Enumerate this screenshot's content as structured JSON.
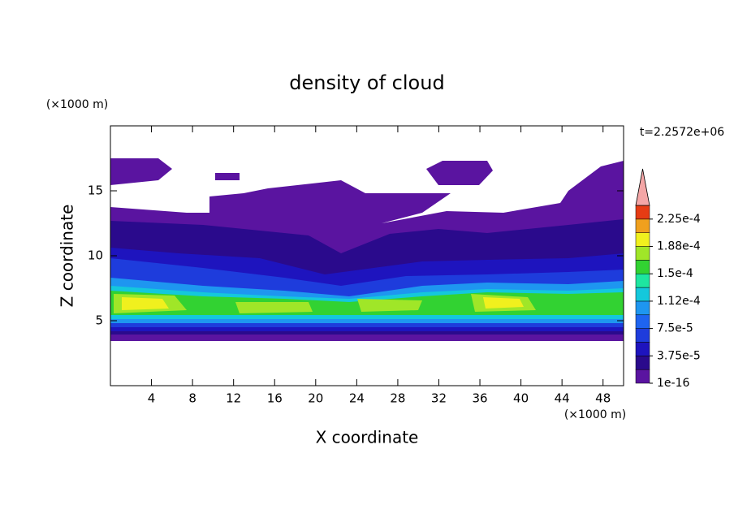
{
  "chart_data": {
    "type": "contour",
    "title": "density of cloud",
    "xlabel": "X coordinate",
    "ylabel": "Z coordinate",
    "x_unit": "(×1000 m)",
    "y_unit": "(×1000 m)",
    "time_label": "t=2.2572e+06",
    "xlim": [
      0,
      50
    ],
    "ylim": [
      0,
      20
    ],
    "xticks": [
      4,
      8,
      12,
      16,
      20,
      24,
      28,
      32,
      36,
      40,
      44,
      48
    ],
    "yticks": [
      5,
      10,
      15
    ],
    "colorbar": {
      "clim": [
        1e-16,
        0.00024375
      ],
      "colors": [
        "#5a14a0",
        "#2a0a8c",
        "#1e14be",
        "#1e3cdc",
        "#1e64f0",
        "#1e96f0",
        "#14c8dc",
        "#1ee6a0",
        "#32d232",
        "#a0e628",
        "#f0f01e",
        "#f0a01e",
        "#e63c14"
      ],
      "extend_color": "#f4a6a6",
      "ticks": [
        {
          "value": 1e-16,
          "label": "1e-16"
        },
        {
          "value": 3.75e-05,
          "label": "3.75e-5"
        },
        {
          "value": 7.5e-05,
          "label": "7.5e-5"
        },
        {
          "value": 0.0001125,
          "label": "1.12e-4"
        },
        {
          "value": 0.00015,
          "label": "1.5e-4"
        },
        {
          "value": 0.0001875,
          "label": "1.88e-4"
        },
        {
          "value": 0.000225,
          "label": "2.25e-4"
        }
      ]
    }
  }
}
